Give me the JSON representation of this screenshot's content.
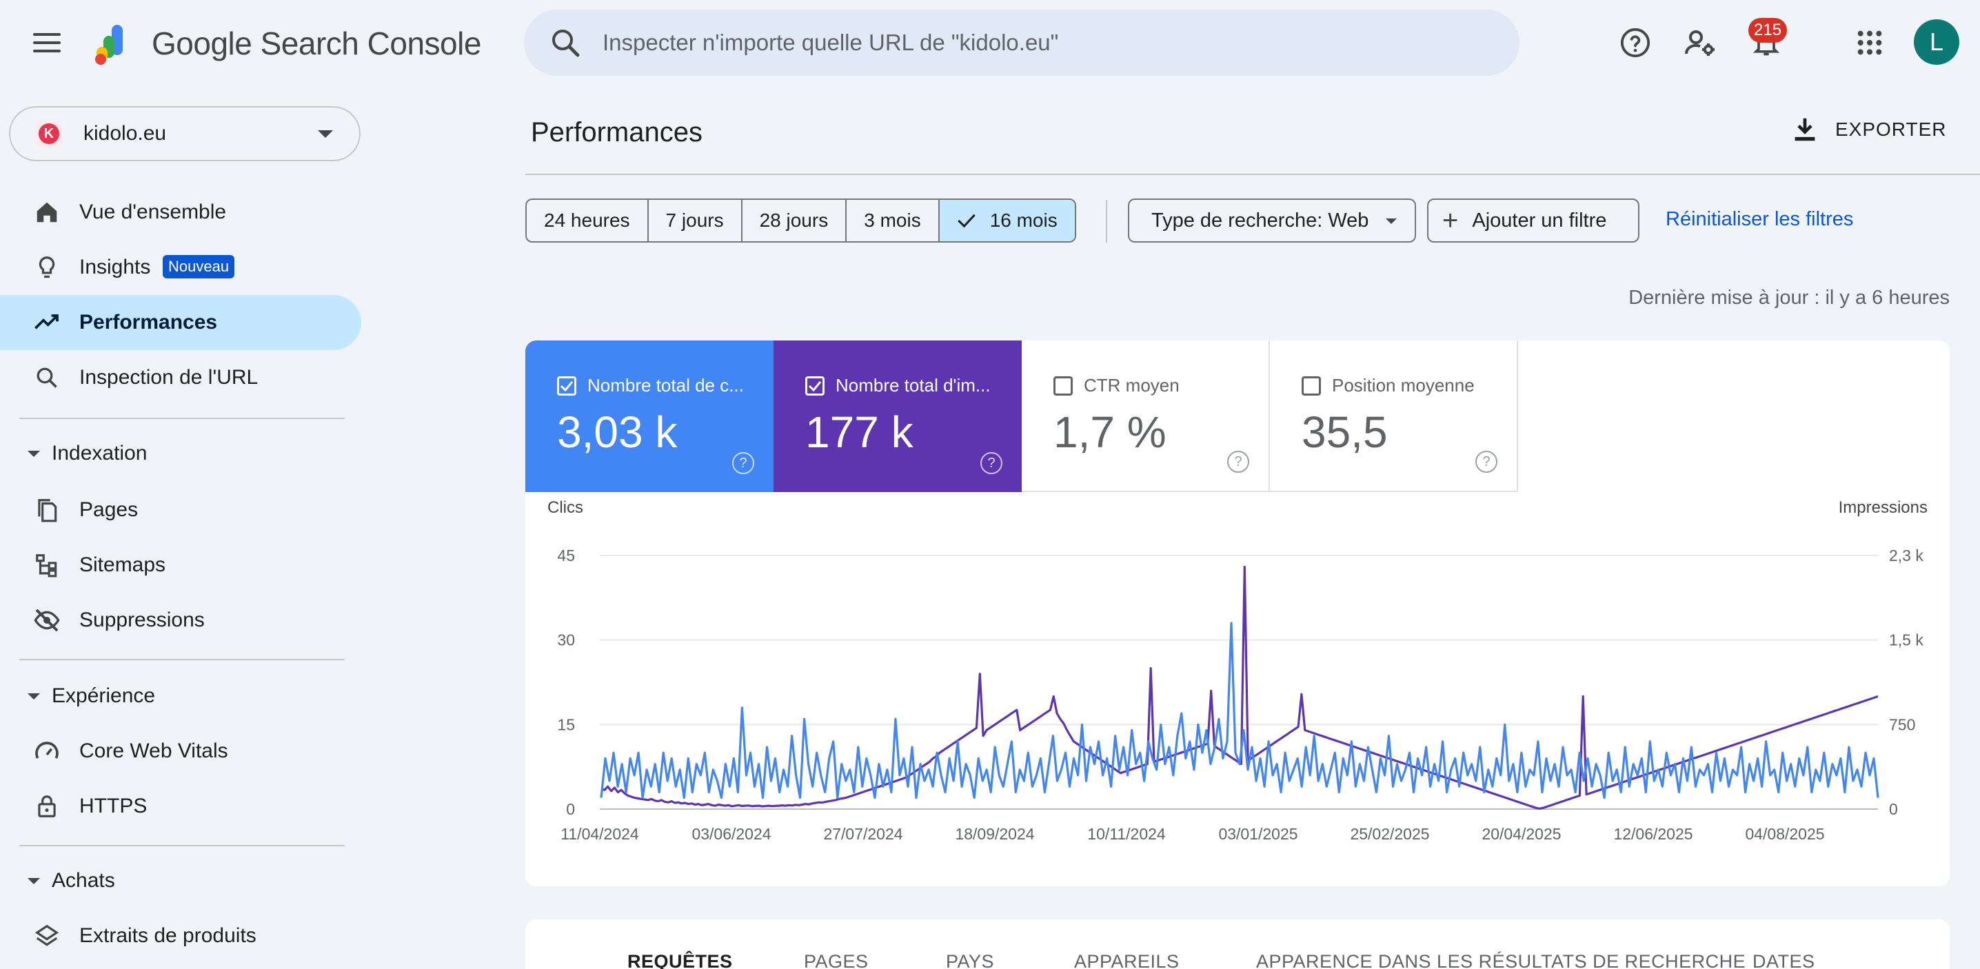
{
  "app": {
    "title": "Google Search Console",
    "search_placeholder": "Inspecter n'importe quelle URL de \"kidolo.eu\"",
    "notifications_count": "215",
    "avatar_letter": "L"
  },
  "property": {
    "name": "kidolo.eu",
    "logo_letter": "K"
  },
  "sidebar": {
    "top_items": [
      {
        "label": "Vue d'ensemble",
        "icon": "home-icon"
      },
      {
        "label": "Insights",
        "icon": "lightbulb-icon",
        "badge": "Nouveau"
      },
      {
        "label": "Performances",
        "icon": "trending-up-icon",
        "active": true
      },
      {
        "label": "Inspection de l'URL",
        "icon": "search-icon"
      }
    ],
    "sections": [
      {
        "title": "Indexation",
        "items": [
          {
            "label": "Pages",
            "icon": "pages-icon"
          },
          {
            "label": "Sitemaps",
            "icon": "sitemap-icon"
          },
          {
            "label": "Suppressions",
            "icon": "eye-off-icon"
          }
        ]
      },
      {
        "title": "Expérience",
        "items": [
          {
            "label": "Core Web Vitals",
            "icon": "speedometer-icon"
          },
          {
            "label": "HTTPS",
            "icon": "lock-icon"
          }
        ]
      },
      {
        "title": "Achats",
        "items": [
          {
            "label": "Extraits de produits",
            "icon": "layers-icon"
          }
        ]
      }
    ]
  },
  "main": {
    "title": "Performances",
    "export_label": "EXPORTER",
    "ranges": [
      "24 heures",
      "7 jours",
      "28 jours",
      "3 mois",
      "16 mois"
    ],
    "selected_range": "16 mois",
    "search_type_label": "Type de recherche: Web",
    "add_filter_label": "Ajouter un filtre",
    "reset_label": "Réinitialiser les filtres",
    "updated_label": "Dernière mise à jour : il y a 6 heures"
  },
  "metrics": [
    {
      "label": "Nombre total de c...",
      "value": "3,03 k",
      "checked": true,
      "color": "#4285f4"
    },
    {
      "label": "Nombre total d'im...",
      "value": "177 k",
      "checked": true,
      "color": "#5e35b1"
    },
    {
      "label": "CTR moyen",
      "value": "1,7 %",
      "checked": false
    },
    {
      "label": "Position moyenne",
      "value": "35,5",
      "checked": false
    }
  ],
  "chart_data": {
    "type": "line",
    "left_axis_label": "Clics",
    "right_axis_label": "Impressions",
    "left_ticks": [
      "45",
      "30",
      "15",
      "0"
    ],
    "right_ticks": [
      "2,3 k",
      "1,5 k",
      "750",
      "0"
    ],
    "ylim_left": [
      0,
      45
    ],
    "ylim_right": [
      0,
      2250
    ],
    "x_labels": [
      "11/04/2024",
      "03/06/2024",
      "27/07/2024",
      "18/09/2024",
      "10/11/2024",
      "03/01/2025",
      "25/02/2025",
      "20/04/2025",
      "12/06/2025",
      "04/08/2025"
    ],
    "series": [
      {
        "name": "Clics",
        "color": "#4285f4",
        "axis": "left",
        "values": [
          2,
          9,
          5,
          10,
          4,
          8,
          3,
          9,
          6,
          10,
          2,
          7,
          4,
          8,
          3,
          10,
          5,
          9,
          4,
          7,
          2,
          9,
          3,
          8,
          6,
          10,
          3,
          7,
          5,
          2,
          8,
          4,
          9,
          3,
          18,
          6,
          10,
          4,
          8,
          2,
          11,
          5,
          9,
          3,
          7,
          4,
          13,
          6,
          2,
          16,
          8,
          4,
          10,
          6,
          3,
          9,
          12,
          2,
          8,
          5,
          7,
          3,
          11,
          4,
          9,
          6,
          2,
          8,
          4,
          7,
          3,
          16,
          6,
          9,
          4,
          11,
          2,
          8,
          5,
          7,
          4,
          10,
          6,
          3,
          9,
          5,
          12,
          4,
          8,
          6,
          2,
          9,
          5,
          7,
          3,
          11,
          6,
          4,
          8,
          12,
          3,
          7,
          5,
          10,
          4,
          6,
          9,
          3,
          8,
          13,
          5,
          7,
          10,
          4,
          9,
          6,
          15,
          5,
          11,
          8,
          12,
          6,
          9,
          4,
          13,
          7,
          11,
          6,
          14,
          8,
          10,
          5,
          12,
          9,
          7,
          15,
          8,
          11,
          6,
          13,
          17,
          9,
          12,
          7,
          15,
          10,
          14,
          8,
          11,
          16,
          9,
          12,
          33,
          10,
          8,
          14,
          7,
          11,
          5,
          9,
          4,
          12,
          6,
          8,
          3,
          10,
          5,
          7,
          9,
          4,
          11,
          6,
          13,
          5,
          8,
          4,
          7,
          10,
          3,
          9,
          6,
          12,
          4,
          8,
          5,
          11,
          7,
          3,
          9,
          6,
          13,
          4,
          8,
          5,
          7,
          10,
          3,
          9,
          6,
          11,
          4,
          8,
          5,
          12,
          3,
          7,
          9,
          4,
          10,
          6,
          8,
          5,
          11,
          3,
          7,
          4,
          9,
          6,
          15,
          5,
          8,
          3,
          10,
          4,
          7,
          6,
          12,
          3,
          9,
          5,
          8,
          4,
          11,
          6,
          7,
          3,
          10,
          5,
          9,
          4,
          8,
          6,
          2,
          10,
          5,
          7,
          3,
          11,
          4,
          8,
          6,
          9,
          3,
          12,
          5,
          7,
          4,
          10,
          6,
          8,
          3,
          9,
          5,
          11,
          4,
          7,
          6,
          8,
          3,
          10,
          5,
          9,
          4,
          7,
          6,
          11,
          3,
          8,
          5,
          9,
          4,
          12,
          6,
          7,
          3,
          10,
          5,
          8,
          4,
          9,
          6,
          11,
          3,
          7,
          5,
          10,
          4,
          8,
          6,
          9,
          3,
          11,
          5,
          7,
          4,
          10,
          6,
          9,
          2
        ]
      },
      {
        "name": "Impressions",
        "color": "#5e35b1",
        "axis": "right",
        "values": [
          180,
          170,
          200,
          160,
          190,
          150,
          170,
          140,
          120,
          110,
          100,
          95,
          90,
          85,
          80,
          90,
          75,
          70,
          80,
          65,
          60,
          70,
          55,
          60,
          50,
          55,
          45,
          50,
          40,
          45,
          35,
          40,
          45,
          35,
          30,
          40,
          35,
          30,
          35,
          25,
          30,
          35,
          28,
          30,
          32,
          26,
          28,
          30,
          25,
          27,
          30,
          26,
          28,
          30,
          33,
          30,
          35,
          32,
          38,
          35,
          40,
          45,
          42,
          50,
          55,
          60,
          58,
          65,
          70,
          75,
          80,
          90,
          95,
          100,
          110,
          120,
          130,
          140,
          150,
          160,
          170,
          180,
          190,
          200,
          210,
          220,
          230,
          240,
          250,
          260,
          270,
          280,
          300,
          320,
          340,
          360,
          380,
          400,
          420,
          450,
          470,
          500,
          520,
          540,
          560,
          580,
          600,
          620,
          640,
          660,
          680,
          700,
          720,
          1200,
          650,
          700,
          720,
          740,
          760,
          780,
          800,
          820,
          840,
          860,
          880,
          700,
          720,
          740,
          760,
          780,
          800,
          820,
          840,
          860,
          880,
          1000,
          850,
          800,
          760,
          700,
          650,
          600,
          580,
          560,
          540,
          520,
          500,
          480,
          460,
          440,
          420,
          400,
          380,
          360,
          340,
          320,
          330,
          340,
          350,
          360,
          370,
          380,
          390,
          400,
          1250,
          420,
          430,
          440,
          450,
          460,
          470,
          480,
          490,
          500,
          510,
          520,
          530,
          540,
          550,
          560,
          570,
          580,
          1050,
          560,
          540,
          520,
          500,
          480,
          460,
          440,
          420,
          400,
          2150,
          430,
          450,
          470,
          490,
          510,
          530,
          550,
          570,
          590,
          610,
          630,
          650,
          670,
          690,
          710,
          730,
          1020,
          700,
          690,
          680,
          670,
          660,
          650,
          640,
          630,
          620,
          610,
          600,
          590,
          580,
          570,
          560,
          550,
          540,
          530,
          520,
          510,
          500,
          490,
          480,
          470,
          460,
          450,
          440,
          430,
          420,
          410,
          400,
          390,
          380,
          370,
          360,
          350,
          340,
          330,
          320,
          310,
          300,
          290,
          280,
          270,
          260,
          250,
          240,
          230,
          220,
          210,
          200,
          190,
          180,
          170,
          160,
          150,
          140,
          130,
          120,
          110,
          100,
          90,
          80,
          70,
          60,
          50,
          40,
          30,
          20,
          10,
          5,
          10,
          20,
          30,
          40,
          50,
          60,
          70,
          80,
          90,
          100,
          110,
          120,
          1000,
          130,
          140,
          150,
          160,
          170,
          180,
          190,
          200,
          210,
          220,
          230,
          240,
          250,
          260,
          270,
          280,
          290,
          300,
          310,
          320,
          330,
          340,
          350,
          360,
          370,
          380,
          390,
          400,
          410,
          420,
          430,
          440,
          450,
          460,
          470,
          480,
          490,
          500,
          510,
          520,
          530,
          540,
          550,
          560,
          570,
          580,
          590,
          600,
          610,
          620,
          630,
          640,
          650,
          660,
          670,
          680,
          690,
          700,
          710,
          720,
          730,
          740,
          750,
          760,
          770,
          780,
          790,
          800,
          810,
          820,
          830,
          840,
          850,
          860,
          870,
          880,
          890,
          900,
          910,
          920,
          930,
          940,
          950,
          960,
          970,
          980,
          990,
          1000
        ]
      }
    ]
  },
  "tabs": [
    "REQUÊTES",
    "PAGES",
    "PAYS",
    "APPAREILS",
    "APPARENCE DANS LES RÉSULTATS DE RECHERCHE",
    "DATES"
  ]
}
